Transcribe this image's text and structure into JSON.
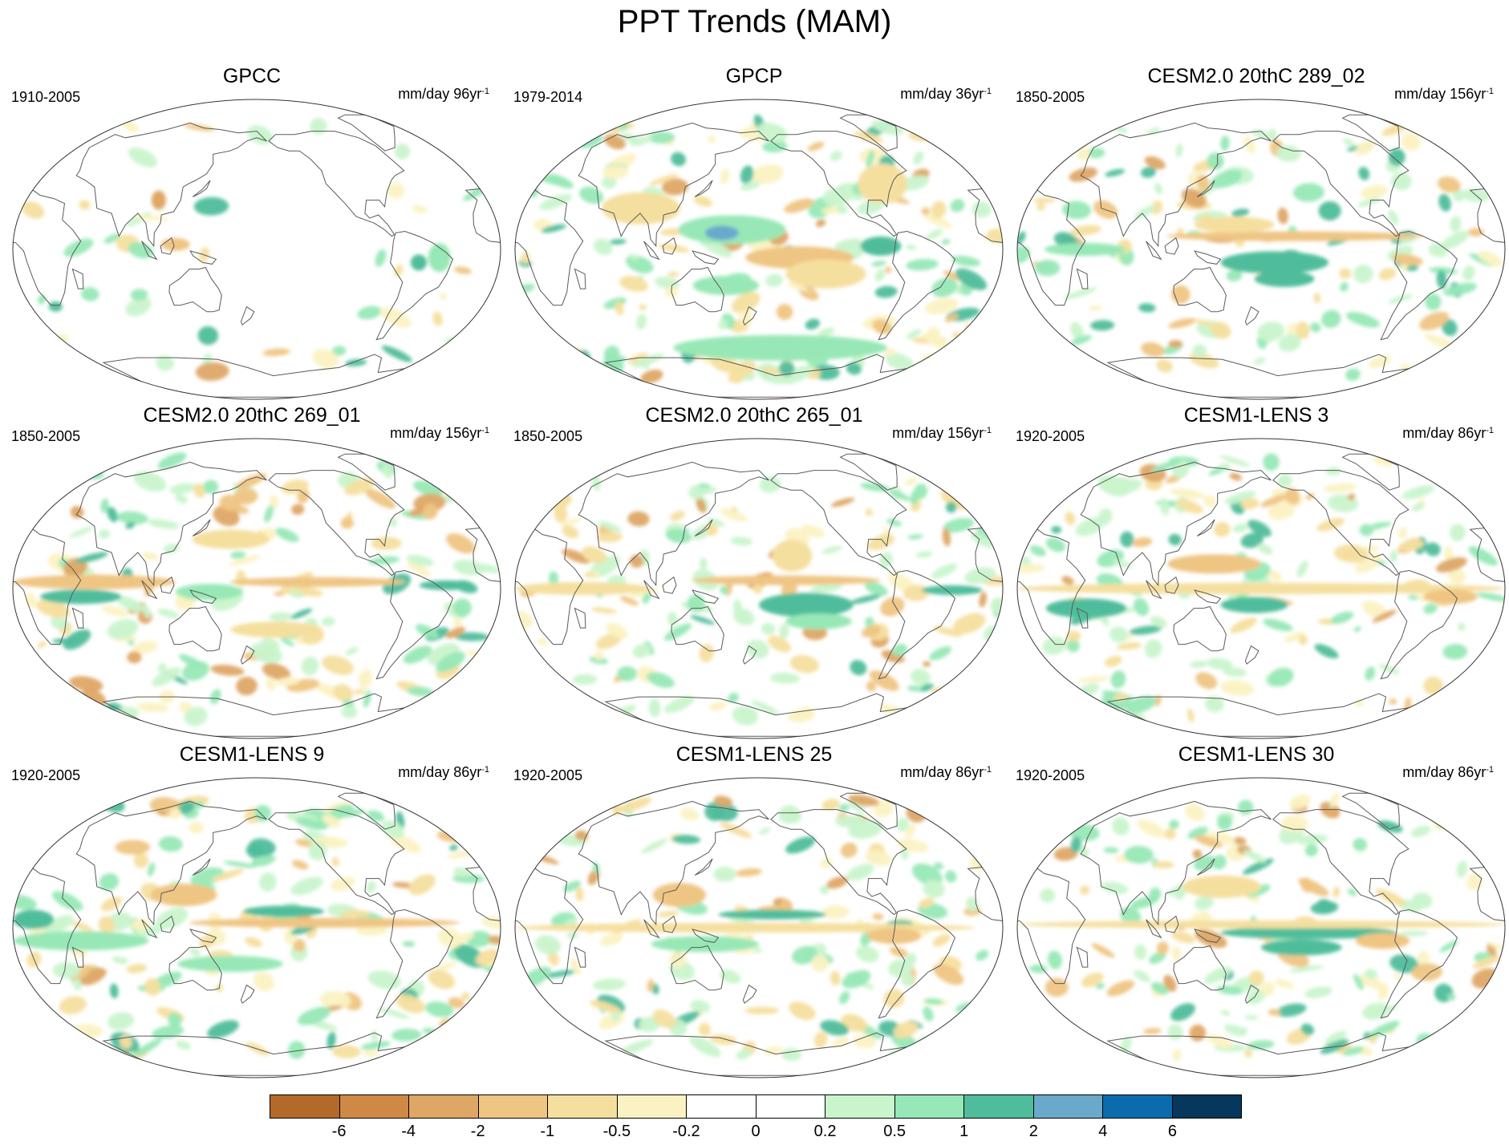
{
  "title": "PPT Trends (MAM)",
  "panels": [
    {
      "title": "GPCC",
      "period": "1910-2005",
      "units": "mm/day 96yr",
      "units_sup": "-1"
    },
    {
      "title": "GPCP",
      "period": "1979-2014",
      "units": "mm/day 36yr",
      "units_sup": "-1"
    },
    {
      "title": "CESM2.0 20thC 289_02",
      "period": "1850-2005",
      "units": "mm/day 156yr",
      "units_sup": "-1"
    },
    {
      "title": "CESM2.0 20thC 269_01",
      "period": "1850-2005",
      "units": "mm/day 156yr",
      "units_sup": "-1"
    },
    {
      "title": "CESM2.0 20thC 265_01",
      "period": "1850-2005",
      "units": "mm/day 156yr",
      "units_sup": "-1"
    },
    {
      "title": "CESM1-LENS 3",
      "period": "1920-2005",
      "units": "mm/day 86yr",
      "units_sup": "-1"
    },
    {
      "title": "CESM1-LENS 9",
      "period": "1920-2005",
      "units": "mm/day 86yr",
      "units_sup": "-1"
    },
    {
      "title": "CESM1-LENS 25",
      "period": "1920-2005",
      "units": "mm/day 86yr",
      "units_sup": "-1"
    },
    {
      "title": "CESM1-LENS 30",
      "period": "1920-2005",
      "units": "mm/day 86yr",
      "units_sup": "-1"
    }
  ],
  "colorbar": {
    "colors": [
      "#b3692a",
      "#ce8a45",
      "#dea766",
      "#efc583",
      "#f5df9f",
      "#fbf2c3",
      "#ffffff",
      "#ffffff",
      "#c9f4cc",
      "#97e8b6",
      "#4fbd9b",
      "#6aa9cc",
      "#0b6cad",
      "#05385c"
    ],
    "labels": [
      "-6",
      "-4",
      "-2",
      "-1",
      "-0.5",
      "-0.2",
      "0",
      "0.2",
      "0.5",
      "1",
      "2",
      "4",
      "6"
    ]
  }
}
